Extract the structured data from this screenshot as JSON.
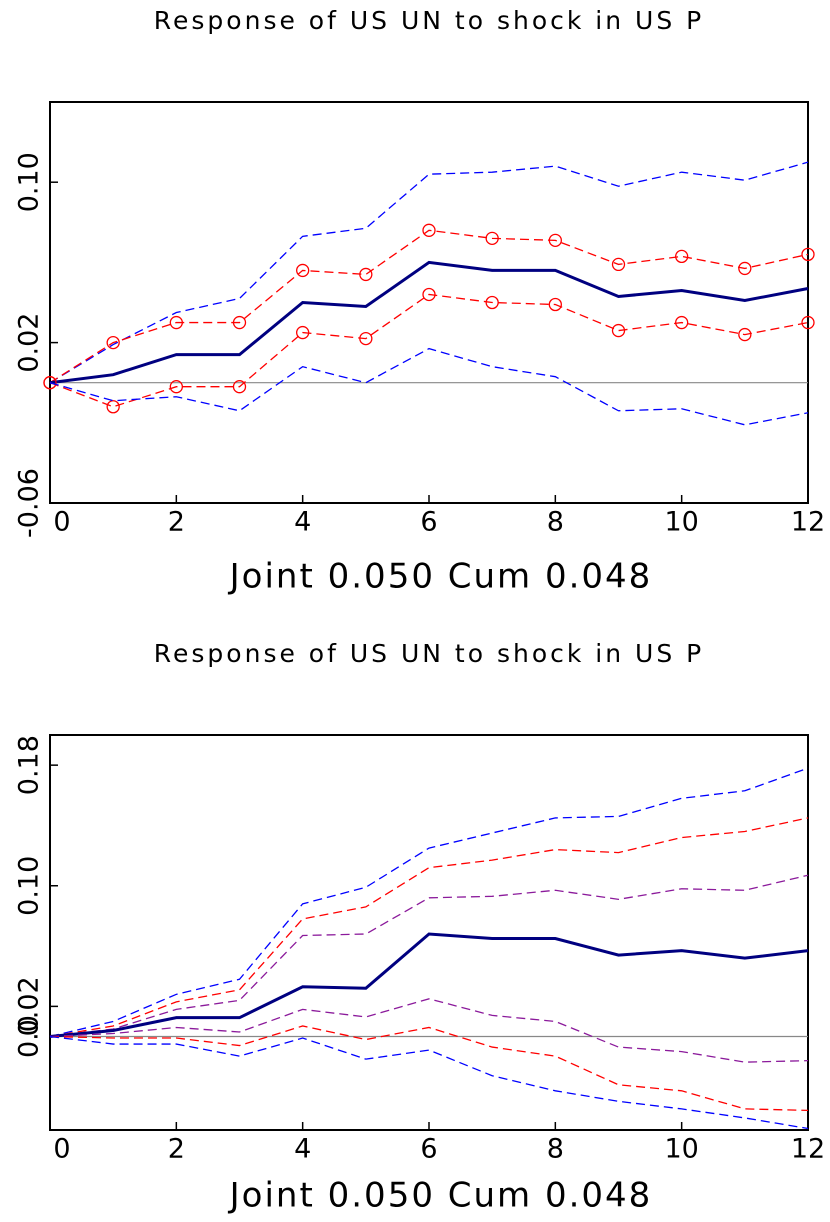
{
  "chart_data": [
    {
      "type": "line",
      "title": "Response of US UN to shock in US P",
      "x_label": "Joint 0.050 Cum 0.048",
      "x": [
        0,
        1,
        2,
        3,
        4,
        5,
        6,
        7,
        8,
        9,
        10,
        11,
        12
      ],
      "xlim": [
        0,
        12
      ],
      "xticks": [
        0,
        2,
        4,
        6,
        8,
        10,
        12
      ],
      "ylim": [
        -0.06,
        0.14
      ],
      "yticks": [
        {
          "value": 0.1,
          "label": "0.10"
        },
        0.02,
        -0.06
      ],
      "zero_line": true,
      "series": [
        {
          "color": "#0000ff",
          "style": "dashed",
          "values": [
            0,
            0.019,
            0.035,
            0.042,
            0.073,
            0.077,
            0.104,
            0.105,
            0.108,
            0.098,
            0.105,
            0.101,
            0.11
          ]
        },
        {
          "color": "#ff0000",
          "style": "dashed",
          "marker": "circle",
          "values": [
            0,
            0.02,
            0.03,
            0.03,
            0.056,
            0.054,
            0.076,
            0.072,
            0.071,
            0.059,
            0.063,
            0.057,
            0.064
          ]
        },
        {
          "color": "#000080",
          "style": "solid",
          "values": [
            0,
            0.004,
            0.014,
            0.014,
            0.04,
            0.038,
            0.06,
            0.056,
            0.056,
            0.043,
            0.046,
            0.041,
            0.047
          ]
        },
        {
          "color": "#ff0000",
          "style": "dashed",
          "marker": "circle",
          "values": [
            0,
            -0.012,
            -0.002,
            -0.002,
            0.025,
            0.022,
            0.044,
            0.04,
            0.039,
            0.026,
            0.03,
            0.024,
            0.03
          ]
        },
        {
          "color": "#0000ff",
          "style": "dashed",
          "values": [
            0,
            -0.009,
            -0.007,
            -0.014,
            0.008,
            0.0,
            0.017,
            0.008,
            0.003,
            -0.014,
            -0.013,
            -0.021,
            -0.015
          ]
        }
      ]
    },
    {
      "type": "line",
      "title": "Response of US UN to shock in US P",
      "x_label": "Joint 0.050 Cum 0.048",
      "x": [
        0,
        1,
        2,
        3,
        4,
        5,
        6,
        7,
        8,
        9,
        10,
        11,
        12
      ],
      "xlim": [
        0,
        12
      ],
      "xticks": [
        0,
        2,
        4,
        6,
        8,
        10,
        12
      ],
      "ylim": [
        -0.062,
        0.2
      ],
      "yticks": [
        0.18,
        {
          "value": 0.1,
          "label": "0.10"
        },
        0.02,
        {
          "value": 0,
          "label": "0.0"
        }
      ],
      "zero_line": true,
      "series": [
        {
          "color": "#0000ff",
          "style": "dashed",
          "values": [
            0,
            0.01,
            0.028,
            0.038,
            0.088,
            0.099,
            0.125,
            0.135,
            0.145,
            0.146,
            0.158,
            0.163,
            0.178
          ]
        },
        {
          "color": "#ff0000",
          "style": "dashed",
          "values": [
            0,
            0.007,
            0.023,
            0.031,
            0.078,
            0.086,
            0.112,
            0.117,
            0.124,
            0.122,
            0.132,
            0.136,
            0.145
          ]
        },
        {
          "color": "#8b1a9b",
          "style": "dashed",
          "values": [
            0,
            0.005,
            0.018,
            0.024,
            0.067,
            0.068,
            0.092,
            0.093,
            0.097,
            0.091,
            0.098,
            0.097,
            0.107
          ]
        },
        {
          "color": "#000080",
          "style": "solid",
          "values": [
            0,
            0.004,
            0.0125,
            0.0125,
            0.033,
            0.032,
            0.068,
            0.065,
            0.065,
            0.054,
            0.057,
            0.052,
            0.057
          ]
        },
        {
          "color": "#8b1a9b",
          "style": "dashed",
          "values": [
            0,
            0.002,
            0.006,
            0.003,
            0.018,
            0.013,
            0.025,
            0.014,
            0.01,
            -0.007,
            -0.01,
            -0.017,
            -0.016
          ]
        },
        {
          "color": "#ff0000",
          "style": "dashed",
          "values": [
            0,
            -0.001,
            -0.001,
            -0.006,
            0.007,
            -0.002,
            0.006,
            -0.007,
            -0.013,
            -0.032,
            -0.036,
            -0.048,
            -0.049
          ]
        },
        {
          "color": "#0000ff",
          "style": "dashed",
          "values": [
            0,
            -0.005,
            -0.005,
            -0.013,
            -0.001,
            -0.015,
            -0.009,
            -0.026,
            -0.036,
            -0.043,
            -0.048,
            -0.054,
            -0.061
          ]
        }
      ]
    }
  ]
}
